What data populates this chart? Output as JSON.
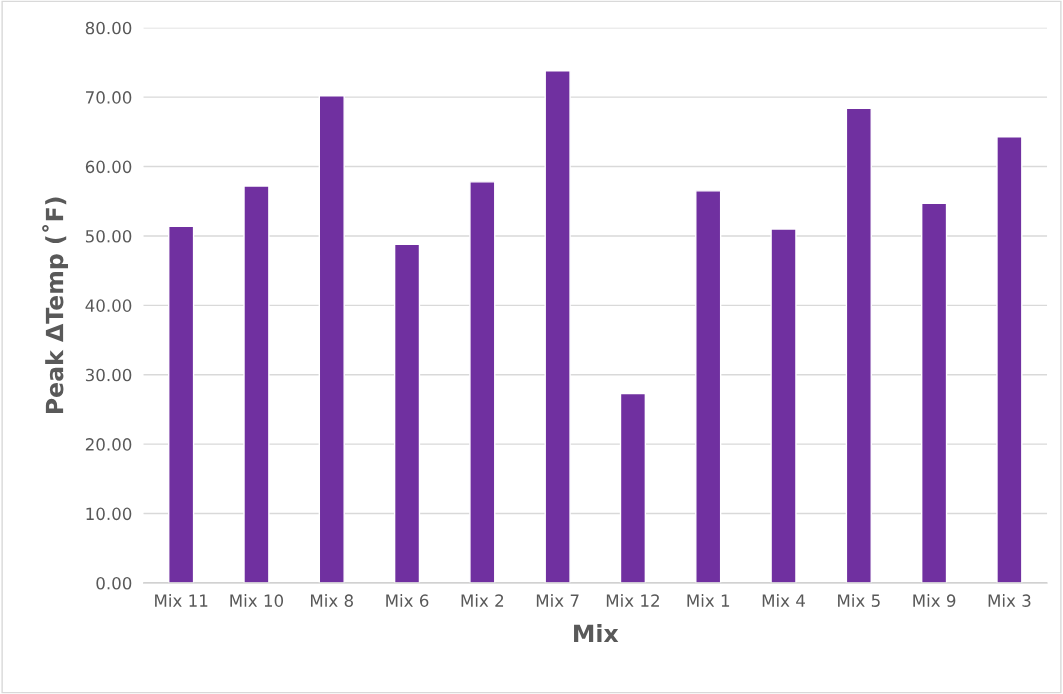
{
  "chart_data": {
    "type": "bar",
    "xlabel": "Mix",
    "ylabel": "Peak ΔTemp (˚F)",
    "categories": [
      "Mix 11",
      "Mix 10",
      "Mix 8",
      "Mix 6",
      "Mix 2",
      "Mix 7",
      "Mix 12",
      "Mix 1",
      "Mix 4",
      "Mix 5",
      "Mix 9",
      "Mix 3"
    ],
    "values": [
      51.4,
      57.2,
      70.2,
      48.8,
      57.8,
      73.8,
      27.3,
      56.5,
      51.0,
      68.4,
      54.7,
      64.3
    ],
    "color": "#7030a0",
    "ylim": [
      0,
      80
    ],
    "yticks": [
      {
        "value": 0,
        "label": "0.00"
      },
      {
        "value": 10,
        "label": "10.00"
      },
      {
        "value": 20,
        "label": "20.00"
      },
      {
        "value": 30,
        "label": "30.00"
      },
      {
        "value": 40,
        "label": "40.00"
      },
      {
        "value": 50,
        "label": "50.00"
      },
      {
        "value": 60,
        "label": "60.00"
      },
      {
        "value": 70,
        "label": "70.00"
      },
      {
        "value": 80,
        "label": "80.00"
      }
    ],
    "grid": "y"
  }
}
